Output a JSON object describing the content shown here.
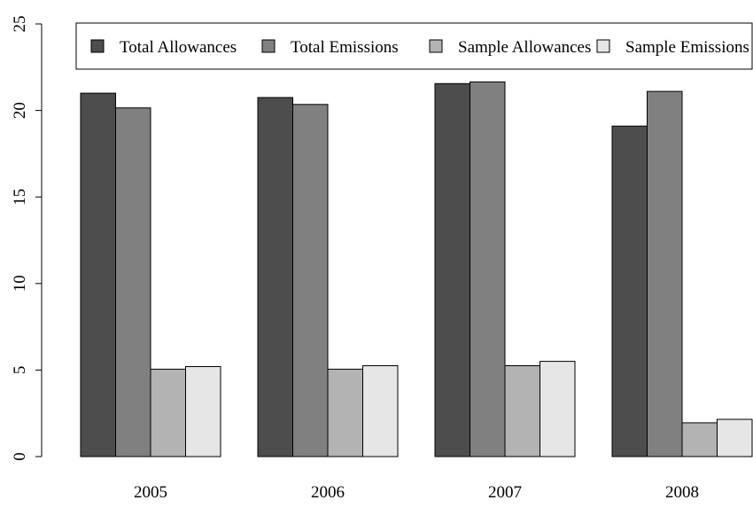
{
  "chart_data": {
    "type": "bar",
    "title": "",
    "xlabel": "",
    "ylabel": "",
    "categories": [
      "2005",
      "2006",
      "2007",
      "2008"
    ],
    "ylim": [
      0,
      25
    ],
    "yticks": [
      0,
      5,
      10,
      15,
      20,
      25
    ],
    "grid": false,
    "legend_position": "top",
    "series": [
      {
        "name": "Total Allowances",
        "color": "#4d4d4d",
        "values": [
          21.0,
          20.75,
          21.55,
          19.1
        ]
      },
      {
        "name": "Total Emissions",
        "color": "#808080",
        "values": [
          20.15,
          20.35,
          21.65,
          21.1
        ]
      },
      {
        "name": "Sample Allowances",
        "color": "#b3b3b3",
        "values": [
          5.05,
          5.05,
          5.25,
          1.95
        ]
      },
      {
        "name": "Sample Emissions",
        "color": "#e6e6e6",
        "values": [
          5.2,
          5.25,
          5.5,
          2.15
        ]
      }
    ]
  }
}
